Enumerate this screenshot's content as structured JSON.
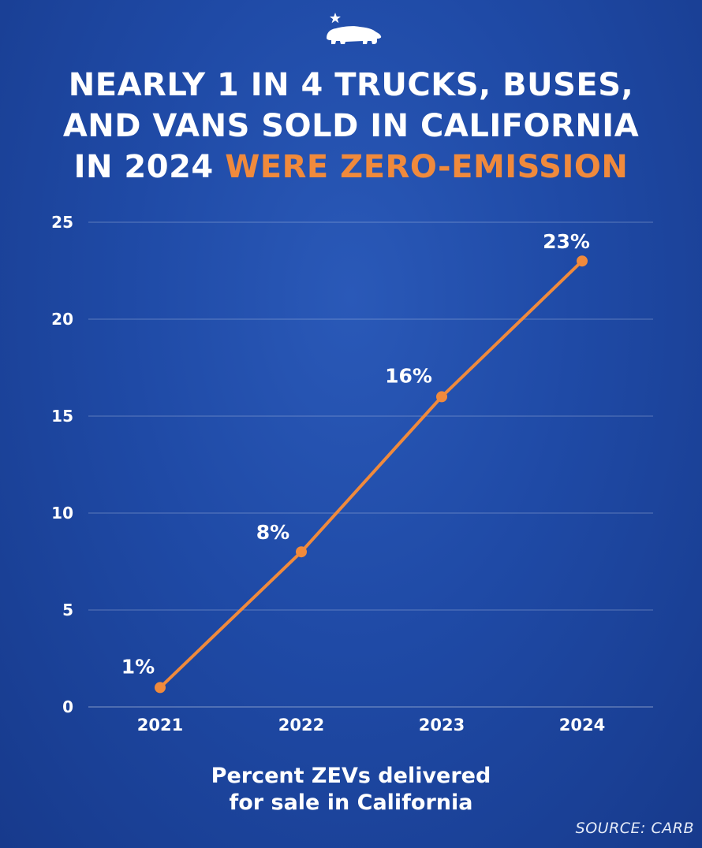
{
  "header": {
    "logo_icon": "california-bear-star-icon",
    "title_line1": "NEARLY 1 IN 4 TRUCKS, BUSES,",
    "title_line2": "AND VANS SOLD IN CALIFORNIA",
    "title_line3_prefix": "IN 2024 ",
    "title_line3_highlight": "WERE ZERO-EMISSION"
  },
  "colors": {
    "accent": "#f08a3c",
    "background": "#1f4aa6",
    "text": "#ffffff"
  },
  "chart_data": {
    "type": "line",
    "categories": [
      "2021",
      "2022",
      "2023",
      "2024"
    ],
    "series": [
      {
        "name": "Percent ZEVs delivered for sale in California",
        "values": [
          1,
          8,
          16,
          23
        ]
      }
    ],
    "data_labels": [
      "1%",
      "8%",
      "16%",
      "23%"
    ],
    "yticks": [
      0,
      5,
      10,
      15,
      20,
      25
    ],
    "ylim": [
      0,
      25
    ],
    "grid": true,
    "xlabel_line1": "Percent ZEVs delivered",
    "xlabel_line2": "for sale in California",
    "ylabel": ""
  },
  "footer": {
    "source": "SOURCE: CARB"
  }
}
